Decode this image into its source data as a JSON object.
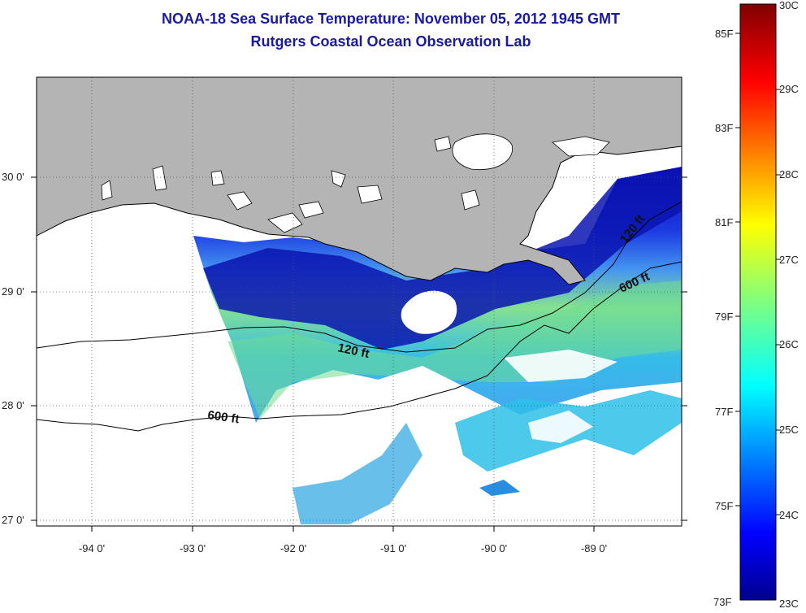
{
  "title": "NOAA-18 Sea Surface Temperature:  November 05, 2012 1945 GMT",
  "subtitle": "Rutgers Coastal Ocean Observation Lab",
  "map": {
    "lat_ticks": [
      {
        "value": 30,
        "label": "30 0'"
      },
      {
        "value": 29,
        "label": "29 0'"
      },
      {
        "value": 28,
        "label": "28 0'"
      },
      {
        "value": 27,
        "label": "27 0'"
      }
    ],
    "lon_ticks": [
      {
        "value": -94,
        "label": "-94 0'"
      },
      {
        "value": -93,
        "label": "-93 0'"
      },
      {
        "value": -92,
        "label": "-92 0'"
      },
      {
        "value": -91,
        "label": "-91 0'"
      },
      {
        "value": -90,
        "label": "-90 0'"
      },
      {
        "value": -89,
        "label": "-89 0'"
      }
    ],
    "contour_labels": [
      "120 ft",
      "120 ft",
      "600 ft",
      "600 ft"
    ],
    "land_color": "#b4b4b4"
  },
  "colorbar": {
    "fahrenheit_labels": [
      "85F",
      "83F",
      "81F",
      "79F",
      "77F",
      "75F",
      "73F"
    ],
    "celsius_labels": [
      "30C",
      "29C",
      "28C",
      "27C",
      "26C",
      "25C",
      "24C",
      "23C"
    ],
    "min_c": 23,
    "max_c": 30
  }
}
